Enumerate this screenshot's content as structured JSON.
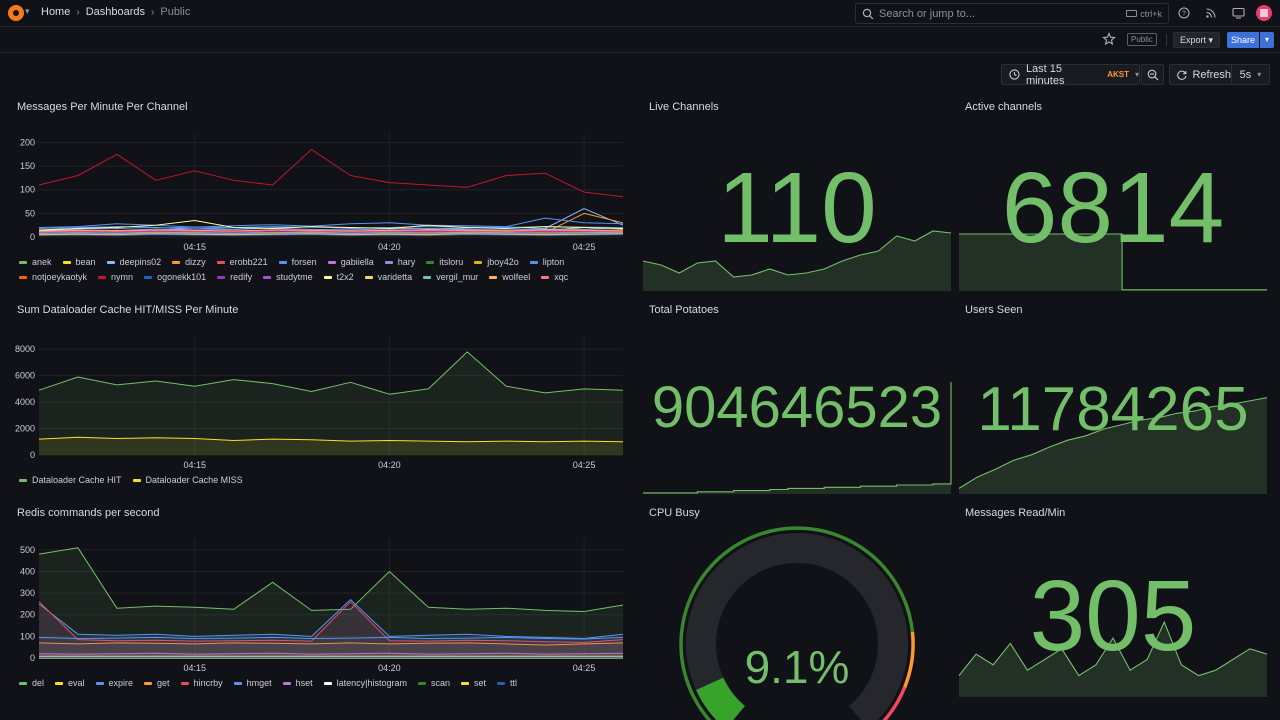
{
  "breadcrumbs": [
    "Home",
    "Dashboards",
    "Public"
  ],
  "search": {
    "placeholder": "Search or jump to...",
    "shortcut": "ctrl+k"
  },
  "toolbar": {
    "public_tag": "Public",
    "export_label": "Export",
    "share_label": "Share"
  },
  "time": {
    "range_label": "Last 15 minutes",
    "timezone": "AKST",
    "refresh_label": "Refresh",
    "interval": "5s"
  },
  "colors": {
    "accent": "#3d71d9",
    "stat_green": "#73bf69",
    "background": "#111217",
    "panel_border": "#24262c"
  },
  "panels": {
    "messages": {
      "title": "Messages Per Minute Per Channel"
    },
    "dataloader": {
      "title": "Sum Dataloader Cache HIT/MISS Per Minute"
    },
    "redis": {
      "title": "Redis commands per second"
    },
    "live_channels": {
      "title": "Live Channels",
      "value": "110"
    },
    "active_channels": {
      "title": "Active channels",
      "value": "6814"
    },
    "total_potatoes": {
      "title": "Total Potatoes",
      "value": "904646523"
    },
    "users_seen": {
      "title": "Users Seen",
      "value": "11784265"
    },
    "cpu_busy": {
      "title": "CPU Busy",
      "value": "9.1%"
    },
    "messages_read": {
      "title": "Messages Read/Min",
      "value": "305"
    }
  },
  "chart_data": [
    {
      "id": "messages",
      "type": "line",
      "title": "Messages Per Minute Per Channel",
      "x": [
        "04:11",
        "04:12",
        "04:13",
        "04:14",
        "04:15",
        "04:16",
        "04:17",
        "04:18",
        "04:19",
        "04:20",
        "04:21",
        "04:22",
        "04:23",
        "04:24",
        "04:25",
        "04:26"
      ],
      "x_ticks": [
        "04:15",
        "04:20",
        "04:25"
      ],
      "ylim": [
        0,
        220
      ],
      "y_ticks": [
        0,
        50,
        100,
        150,
        200
      ],
      "series": [
        {
          "name": "anek",
          "color": "#73bf69",
          "values": [
            8,
            10,
            9,
            12,
            10,
            11,
            9,
            10,
            12,
            9,
            11,
            10,
            12,
            11,
            10,
            12
          ]
        },
        {
          "name": "bean",
          "color": "#fade2a",
          "values": [
            12,
            14,
            11,
            15,
            13,
            12,
            14,
            13,
            12,
            14,
            13,
            15,
            12,
            14,
            20,
            16
          ]
        },
        {
          "name": "deepins02",
          "color": "#8ab8ff",
          "values": [
            15,
            18,
            22,
            20,
            17,
            16,
            19,
            22,
            18,
            20,
            17,
            19,
            21,
            18,
            60,
            25
          ]
        },
        {
          "name": "dizzy",
          "color": "#ff9830",
          "values": [
            6,
            8,
            7,
            9,
            8,
            7,
            9,
            8,
            7,
            8,
            9,
            8,
            7,
            9,
            50,
            30
          ]
        },
        {
          "name": "erobb221",
          "color": "#f2495c",
          "values": [
            10,
            12,
            11,
            13,
            12,
            11,
            13,
            12,
            11,
            13,
            12,
            11,
            13,
            12,
            14,
            13
          ]
        },
        {
          "name": "forsen",
          "color": "#5794f2",
          "values": [
            20,
            22,
            28,
            25,
            21,
            24,
            26,
            23,
            28,
            30,
            25,
            24,
            22,
            40,
            30,
            28
          ]
        },
        {
          "name": "gabiiella",
          "color": "#b877d9",
          "values": [
            5,
            6,
            5,
            7,
            6,
            5,
            6,
            7,
            5,
            6,
            5,
            7,
            6,
            5,
            6,
            7
          ]
        },
        {
          "name": "hary",
          "color": "#8f8fdc",
          "values": [
            14,
            16,
            18,
            15,
            17,
            20,
            18,
            16,
            15,
            17,
            18,
            16,
            15,
            17,
            16,
            18
          ]
        },
        {
          "name": "itsloru",
          "color": "#37872d",
          "values": [
            4,
            5,
            4,
            6,
            5,
            4,
            5,
            6,
            4,
            5,
            4,
            6,
            5,
            4,
            5,
            6
          ]
        },
        {
          "name": "jboy42o",
          "color": "#e0b400",
          "values": [
            10,
            12,
            14,
            11,
            13,
            12,
            14,
            12,
            11,
            13,
            12,
            14,
            13,
            12,
            14,
            13
          ]
        },
        {
          "name": "lipton",
          "color": "#5794f2",
          "values": [
            18,
            20,
            22,
            19,
            21,
            20,
            22,
            21,
            19,
            20,
            22,
            21,
            20,
            22,
            21,
            20
          ]
        },
        {
          "name": "notjoeykaotyk",
          "color": "#fa6400",
          "values": [
            7,
            9,
            8,
            10,
            9,
            8,
            10,
            9,
            8,
            9,
            10,
            9,
            8,
            10,
            9,
            8
          ]
        },
        {
          "name": "nymn",
          "color": "#c4162a",
          "values": [
            110,
            130,
            175,
            120,
            140,
            120,
            110,
            185,
            130,
            115,
            110,
            105,
            130,
            135,
            95,
            85
          ]
        },
        {
          "name": "ogonekk101",
          "color": "#1f60c4",
          "values": [
            3,
            4,
            3,
            5,
            4,
            3,
            4,
            5,
            3,
            4,
            3,
            5,
            4,
            3,
            4,
            5
          ]
        },
        {
          "name": "redify",
          "color": "#8f3bb8",
          "values": [
            9,
            11,
            10,
            12,
            11,
            10,
            12,
            11,
            10,
            11,
            12,
            11,
            10,
            12,
            11,
            10
          ]
        },
        {
          "name": "studytme",
          "color": "#a352cc",
          "values": [
            6,
            7,
            6,
            8,
            7,
            6,
            7,
            8,
            6,
            7,
            6,
            8,
            7,
            6,
            7,
            8
          ]
        },
        {
          "name": "t2x2",
          "color": "#fff899",
          "values": [
            14,
            18,
            20,
            25,
            35,
            20,
            18,
            22,
            20,
            18,
            25,
            20,
            18,
            22,
            20,
            18
          ]
        },
        {
          "name": "varidetta",
          "color": "#ffcb7d",
          "values": [
            12,
            14,
            13,
            15,
            14,
            13,
            15,
            14,
            13,
            14,
            15,
            14,
            13,
            15,
            14,
            13
          ]
        },
        {
          "name": "vergil_mur",
          "color": "#73bfb8",
          "values": [
            8,
            9,
            8,
            10,
            9,
            8,
            9,
            10,
            8,
            9,
            8,
            10,
            9,
            8,
            9,
            10
          ]
        },
        {
          "name": "wolfeel",
          "color": "#ffb357",
          "values": [
            5,
            6,
            5,
            7,
            6,
            5,
            6,
            7,
            5,
            6,
            5,
            7,
            6,
            5,
            6,
            7
          ]
        },
        {
          "name": "xqc",
          "color": "#ff7383",
          "values": [
            11,
            13,
            12,
            14,
            13,
            12,
            14,
            13,
            12,
            13,
            14,
            13,
            12,
            14,
            13,
            12
          ]
        }
      ]
    },
    {
      "id": "dataloader",
      "type": "line",
      "title": "Sum Dataloader Cache HIT/MISS Per Minute",
      "x": [
        "04:11",
        "04:12",
        "04:13",
        "04:14",
        "04:15",
        "04:16",
        "04:17",
        "04:18",
        "04:19",
        "04:20",
        "04:21",
        "04:22",
        "04:23",
        "04:24",
        "04:25",
        "04:26"
      ],
      "x_ticks": [
        "04:15",
        "04:20",
        "04:25"
      ],
      "ylim": [
        0,
        9000
      ],
      "y_ticks": [
        0,
        2000,
        4000,
        6000,
        8000
      ],
      "series": [
        {
          "name": "Dataloader Cache HIT",
          "color": "#73bf69",
          "values": [
            4900,
            5900,
            5300,
            5600,
            5200,
            5700,
            5400,
            4800,
            5500,
            4600,
            5000,
            7800,
            5200,
            4700,
            5000,
            4900
          ]
        },
        {
          "name": "Dataloader Cache MISS",
          "color": "#fade2a",
          "values": [
            1200,
            1350,
            1250,
            1300,
            1250,
            1100,
            1200,
            1150,
            1050,
            1100,
            1050,
            1000,
            1050,
            1000,
            1050,
            1000
          ]
        }
      ]
    },
    {
      "id": "redis",
      "type": "line",
      "title": "Redis commands per second",
      "x": [
        "04:11",
        "04:12",
        "04:13",
        "04:14",
        "04:15",
        "04:16",
        "04:17",
        "04:18",
        "04:19",
        "04:20",
        "04:21",
        "04:22",
        "04:23",
        "04:24",
        "04:25",
        "04:26"
      ],
      "x_ticks": [
        "04:15",
        "04:20",
        "04:25"
      ],
      "ylim": [
        0,
        550
      ],
      "y_ticks": [
        0,
        100,
        200,
        300,
        400,
        500
      ],
      "series": [
        {
          "name": "del",
          "color": "#73bf69",
          "values": [
            480,
            510,
            230,
            240,
            235,
            225,
            350,
            220,
            225,
            400,
            235,
            225,
            230,
            220,
            215,
            245
          ]
        },
        {
          "name": "eval",
          "color": "#fade2a",
          "values": [
            2,
            3,
            2,
            3,
            2,
            3,
            2,
            3,
            2,
            3,
            2,
            3,
            2,
            3,
            2,
            3
          ]
        },
        {
          "name": "expire",
          "color": "#5794f2",
          "values": [
            250,
            110,
            105,
            110,
            100,
            105,
            110,
            100,
            270,
            100,
            105,
            110,
            100,
            95,
            90,
            110
          ]
        },
        {
          "name": "get",
          "color": "#ff9830",
          "values": [
            70,
            65,
            70,
            68,
            65,
            70,
            68,
            65,
            70,
            65,
            68,
            70,
            65,
            60,
            65,
            70
          ]
        },
        {
          "name": "hincrby",
          "color": "#f2495c",
          "values": [
            260,
            85,
            80,
            82,
            78,
            80,
            82,
            78,
            260,
            80,
            78,
            82,
            80,
            75,
            72,
            85
          ]
        },
        {
          "name": "hmget",
          "color": "#5794f2",
          "values": [
            95,
            90,
            92,
            95,
            90,
            92,
            95,
            90,
            92,
            95,
            90,
            92,
            95,
            90,
            88,
            95
          ]
        },
        {
          "name": "hset",
          "color": "#b877d9",
          "values": [
            20,
            18,
            20,
            22,
            18,
            20,
            22,
            18,
            20,
            22,
            18,
            20,
            22,
            18,
            20,
            22
          ]
        },
        {
          "name": "latency|histogram",
          "color": "#ffffff",
          "values": [
            0,
            0,
            0,
            0,
            0,
            0,
            0,
            0,
            0,
            0,
            0,
            0,
            0,
            0,
            0,
            0
          ]
        },
        {
          "name": "scan",
          "color": "#37872d",
          "values": [
            5,
            5,
            5,
            5,
            5,
            5,
            5,
            5,
            5,
            5,
            5,
            5,
            5,
            5,
            5,
            5
          ]
        },
        {
          "name": "set",
          "color": "#fade2a",
          "values": [
            8,
            8,
            8,
            8,
            8,
            8,
            8,
            8,
            8,
            8,
            8,
            8,
            8,
            8,
            8,
            8
          ]
        },
        {
          "name": "ttl",
          "color": "#1f60c4",
          "values": [
            3,
            3,
            3,
            3,
            3,
            3,
            3,
            3,
            3,
            3,
            3,
            3,
            3,
            3,
            3,
            3
          ]
        }
      ]
    },
    {
      "id": "live_channels_spark",
      "type": "area",
      "values": [
        30,
        26,
        18,
        28,
        30,
        14,
        16,
        22,
        16,
        18,
        22,
        30,
        36,
        40,
        55,
        50,
        60,
        58
      ]
    },
    {
      "id": "active_channels_spark",
      "type": "area",
      "values": [
        95,
        95,
        95,
        95,
        95,
        95,
        95,
        95,
        95,
        2,
        2,
        2,
        2,
        2,
        2,
        2,
        2,
        2
      ]
    },
    {
      "id": "total_potatoes_spark",
      "type": "area",
      "values": [
        1,
        1,
        1,
        2,
        2,
        3,
        3,
        4,
        5,
        5,
        6,
        6,
        7,
        7,
        8,
        8,
        9,
        100
      ]
    },
    {
      "id": "users_seen_spark",
      "type": "area",
      "values": [
        5,
        15,
        22,
        30,
        35,
        42,
        48,
        52,
        58,
        62,
        66,
        68,
        72,
        74,
        78,
        80,
        83,
        86
      ]
    },
    {
      "id": "messages_read_spark",
      "type": "area",
      "values": [
        20,
        40,
        30,
        50,
        25,
        35,
        45,
        20,
        30,
        55,
        25,
        35,
        70,
        30,
        20,
        25,
        35,
        45,
        40
      ]
    },
    {
      "id": "cpu_busy_gauge",
      "type": "gauge",
      "value": 9.1,
      "min": 0,
      "max": 100,
      "thresholds": [
        {
          "value": 0,
          "color": "#37872d"
        },
        {
          "value": 80,
          "color": "#ff9830"
        },
        {
          "value": 90,
          "color": "#f2495c"
        }
      ]
    }
  ]
}
